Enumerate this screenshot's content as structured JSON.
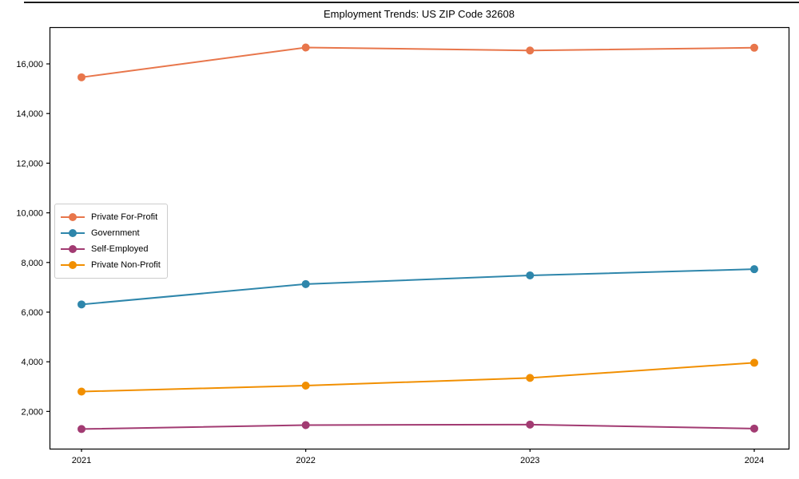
{
  "title": "Employment Trends: US ZIP Code 32608",
  "chart_data": {
    "type": "line",
    "title": "Employment Trends: US ZIP Code 32608",
    "xlabel": "",
    "ylabel": "",
    "x": [
      2021,
      2022,
      2023,
      2024
    ],
    "x_tick_labels": [
      "2021",
      "2022",
      "2023",
      "2024"
    ],
    "y_ticks": [
      {
        "value": 2000,
        "label": "2,000"
      },
      {
        "value": 4000,
        "label": "4,000"
      },
      {
        "value": 6000,
        "label": "6,000"
      },
      {
        "value": 8000,
        "label": "8,000"
      },
      {
        "value": 10000,
        "label": "10,000"
      },
      {
        "value": 12000,
        "label": "12,000"
      },
      {
        "value": 14000,
        "label": "14,000"
      },
      {
        "value": 16000,
        "label": "16,000"
      }
    ],
    "ylim": [
      500,
      17480
    ],
    "grid": false,
    "legend_position": "center-left",
    "series": [
      {
        "name": "Private For-Profit",
        "color": "#E8764B",
        "values": [
          15460,
          16660,
          16540,
          16650
        ]
      },
      {
        "name": "Government",
        "color": "#2E86AB",
        "values": [
          6310,
          7130,
          7480,
          7730
        ]
      },
      {
        "name": "Self-Employed",
        "color": "#A23B72",
        "values": [
          1290,
          1450,
          1470,
          1310
        ]
      },
      {
        "name": "Private Non-Profit",
        "color": "#F18F01",
        "values": [
          2800,
          3040,
          3350,
          3960
        ]
      }
    ]
  }
}
